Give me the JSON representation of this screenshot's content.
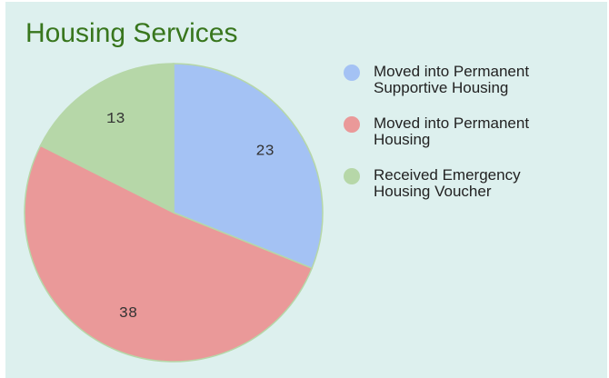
{
  "chart_data": {
    "type": "pie",
    "title": "Housing Services",
    "categories": [
      "Moved into Permanent Supportive Housing",
      "Moved into Permanent Housing",
      "Received Emergency Housing Voucher"
    ],
    "values": [
      23,
      38,
      13
    ],
    "colors": [
      "#a4c2f4",
      "#ea9999",
      "#b6d7a8"
    ]
  }
}
